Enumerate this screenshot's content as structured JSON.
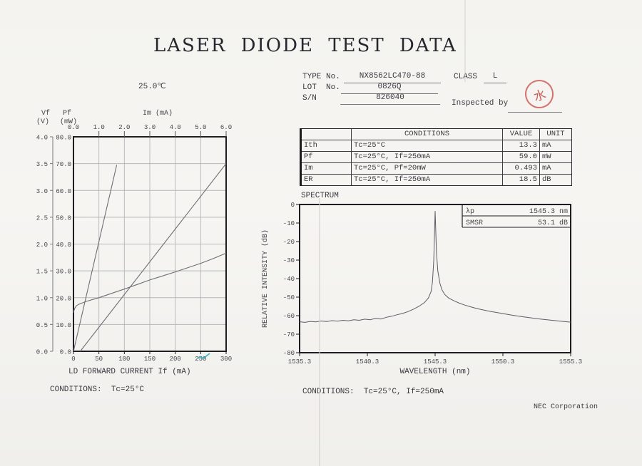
{
  "page": {
    "title": "LASER DIODE TEST DATA",
    "footer_company": "NEC Corporation"
  },
  "header_fields": {
    "type_label": "TYPE No.",
    "type_value": "NX8562LC470-88",
    "class_label": "CLASS",
    "class_value": "L",
    "lot_label": "LOT  No.",
    "lot_value": "0826Q",
    "sn_label": "S/N",
    "sn_value": "826040",
    "inspected_label": "Inspected by",
    "stamp_char": "水"
  },
  "results_table": {
    "headers": [
      "",
      "CONDITIONS",
      "VALUE",
      "UNIT"
    ],
    "rows": [
      {
        "param": "Ith",
        "conditions": "Tc=25°C",
        "value": "13.3",
        "unit": "mA"
      },
      {
        "param": "Pf",
        "conditions": "Tc=25°C, If=250mA",
        "value": "59.0",
        "unit": "mW"
      },
      {
        "param": "Im",
        "conditions": "Tc=25°C, Pf=20mW",
        "value": "0.493",
        "unit": "mA"
      },
      {
        "param": "ER",
        "conditions": "Tc=25°C, If=250mA",
        "value": "18.5",
        "unit": "dB"
      }
    ]
  },
  "liv_section": {
    "conditions": "CONDITIONS:  Tc=25°C"
  },
  "spectrum_section": {
    "title": "SPECTRUM",
    "conditions": "CONDITIONS:  Tc=25°C, If=250mA"
  },
  "chart_data": [
    {
      "type": "line",
      "title": "25.0℃",
      "xlabel": "LD FORWARD CURRENT If (mA)",
      "top_axis_label": "Im (mA)",
      "left_axis_name": "Pf",
      "left_axis_unit": "(mW)",
      "far_left_axis_name": "Vf",
      "far_left_axis_unit": "(V)",
      "xlim": [
        0,
        300
      ],
      "x_ticks": [
        0,
        50,
        100,
        150,
        200,
        250,
        300
      ],
      "im_lim": [
        0,
        6
      ],
      "im_ticks": [
        "0.0",
        "1.0",
        "2.0",
        "3.0",
        "4.0",
        "5.0",
        "6.0"
      ],
      "pf_lim": [
        0,
        80
      ],
      "pf_ticks": [
        "0.0",
        "10.0",
        "20.0",
        "30.0",
        "40.0",
        "50.0",
        "60.0",
        "70.0",
        "80.0"
      ],
      "vf_lim": [
        0,
        4
      ],
      "vf_ticks": [
        "0.0",
        "0.5",
        "1.0",
        "1.5",
        "2.0",
        "2.5",
        "3.0",
        "3.5",
        "4.0"
      ],
      "grid": true,
      "series": [
        {
          "name": "Pf-vs-If",
          "x_axis": "bottom",
          "y_axis": "pf",
          "points": [
            [
              13.3,
              0
            ],
            [
              300,
              70
            ]
          ]
        },
        {
          "name": "Pf-vs-Im",
          "x_axis": "top",
          "y_axis": "pf",
          "points": [
            [
              0,
              0
            ],
            [
              1.7,
              69.5
            ]
          ]
        },
        {
          "name": "Vf-vs-If",
          "x_axis": "bottom",
          "y_axis": "vf",
          "points": [
            [
              0,
              0.72
            ],
            [
              1,
              0.76
            ],
            [
              3,
              0.81
            ],
            [
              6,
              0.85
            ],
            [
              10,
              0.875
            ],
            [
              15,
              0.895
            ],
            [
              25,
              0.93
            ],
            [
              50,
              1.0
            ],
            [
              75,
              1.08
            ],
            [
              100,
              1.16
            ],
            [
              125,
              1.245
            ],
            [
              150,
              1.33
            ],
            [
              175,
              1.405
            ],
            [
              200,
              1.48
            ],
            [
              225,
              1.56
            ],
            [
              250,
              1.64
            ],
            [
              275,
              1.73
            ],
            [
              300,
              1.83
            ]
          ]
        }
      ]
    },
    {
      "type": "line",
      "xlabel": "WAVELENGTH (nm)",
      "ylabel": "RELATIVE INTENSITY (dB)",
      "xlim": [
        1535.3,
        1555.3
      ],
      "ylim": [
        -80,
        0
      ],
      "x_ticks": [
        "1535.3",
        "1540.3",
        "1545.3",
        "1550.3",
        "1555.3"
      ],
      "y_ticks": [
        0,
        -10,
        -20,
        -30,
        -40,
        -50,
        -60,
        -70,
        -80
      ],
      "grid": false,
      "peak_wavelength_nm": 1545.3,
      "smsr_db": 53.1,
      "legend": [
        {
          "label": "λp",
          "value": "1545.3 nm"
        },
        {
          "label": "SMSR",
          "value": "53.1 dB"
        }
      ],
      "points": [
        [
          1535.3,
          -63.3
        ],
        [
          1535.7,
          -63.6
        ],
        [
          1536.1,
          -63.1
        ],
        [
          1536.5,
          -63.4
        ],
        [
          1536.9,
          -62.9
        ],
        [
          1537.3,
          -63.2
        ],
        [
          1537.7,
          -62.7
        ],
        [
          1538.1,
          -63.0
        ],
        [
          1538.5,
          -62.5
        ],
        [
          1538.9,
          -62.8
        ],
        [
          1539.3,
          -62.2
        ],
        [
          1539.7,
          -62.5
        ],
        [
          1540.1,
          -61.9
        ],
        [
          1540.5,
          -62.2
        ],
        [
          1540.9,
          -61.5
        ],
        [
          1541.3,
          -61.8
        ],
        [
          1541.7,
          -60.9
        ],
        [
          1542.1,
          -60.3
        ],
        [
          1542.5,
          -59.5
        ],
        [
          1542.9,
          -58.8
        ],
        [
          1543.3,
          -57.8
        ],
        [
          1543.7,
          -56.5
        ],
        [
          1544.1,
          -55.0
        ],
        [
          1544.5,
          -53.0
        ],
        [
          1544.8,
          -50.5
        ],
        [
          1545.0,
          -47.0
        ],
        [
          1545.1,
          -42.0
        ],
        [
          1545.2,
          -30.0
        ],
        [
          1545.3,
          -3.5
        ],
        [
          1545.4,
          -26.0
        ],
        [
          1545.5,
          -36.0
        ],
        [
          1545.65,
          -42.5
        ],
        [
          1545.8,
          -46.0
        ],
        [
          1546.0,
          -48.5
        ],
        [
          1546.3,
          -50.5
        ],
        [
          1546.7,
          -52.0
        ],
        [
          1547.1,
          -53.3
        ],
        [
          1547.5,
          -54.3
        ],
        [
          1547.9,
          -55.2
        ],
        [
          1548.3,
          -56.0
        ],
        [
          1548.7,
          -56.7
        ],
        [
          1549.1,
          -57.3
        ],
        [
          1549.5,
          -57.9
        ],
        [
          1549.9,
          -58.4
        ],
        [
          1550.3,
          -58.9
        ],
        [
          1550.8,
          -59.5
        ],
        [
          1551.3,
          -60.1
        ],
        [
          1551.8,
          -60.6
        ],
        [
          1552.3,
          -61.1
        ],
        [
          1552.8,
          -61.6
        ],
        [
          1553.3,
          -62.0
        ],
        [
          1553.8,
          -62.4
        ],
        [
          1554.3,
          -62.8
        ],
        [
          1554.8,
          -63.2
        ],
        [
          1555.3,
          -63.5
        ]
      ]
    }
  ]
}
